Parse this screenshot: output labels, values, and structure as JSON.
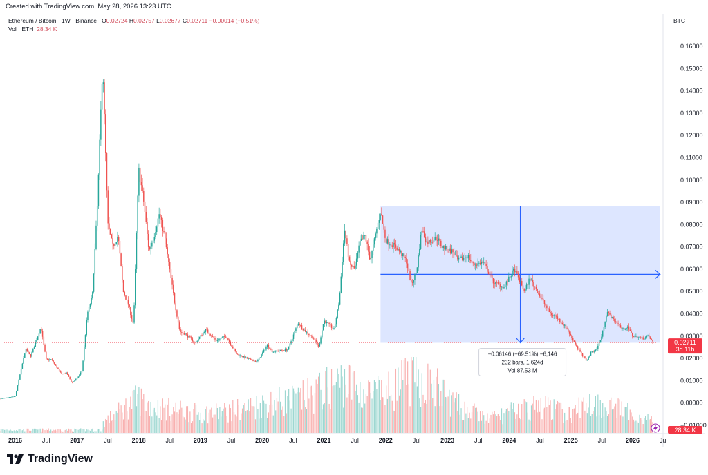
{
  "header": {
    "created": "Created with TradingView.com, May 28, 2026 13:23 UTC"
  },
  "legend": {
    "symbol": "Ethereum / Bitcoin · 1W · Binance",
    "o_label": "O",
    "o": "0.02724",
    "h_label": "H",
    "h": "0.02757",
    "l_label": "L",
    "l": "0.02677",
    "c_label": "C",
    "c": "0.02711",
    "change": "−0.00014 (−0.51%)",
    "vol_label": "Vol · ETH",
    "vol_value": "28.34 K"
  },
  "axis": {
    "currency": "BTC",
    "price_ticks": [
      "0.16000",
      "0.15000",
      "0.14000",
      "0.13000",
      "0.12000",
      "0.11000",
      "0.10000",
      "0.09000",
      "0.08000",
      "0.07000",
      "0.06000",
      "0.05000",
      "0.04000",
      "0.03000",
      "0.02000",
      "0.01000",
      "0.00000",
      "−0.01000"
    ],
    "time_ticks": [
      "2016",
      "Jul",
      "2017",
      "Jul",
      "2018",
      "Jul",
      "2019",
      "Jul",
      "2020",
      "Jul",
      "2021",
      "Jul",
      "2022",
      "Jul",
      "2023",
      "Jul",
      "2024",
      "Jul",
      "2025",
      "Jul",
      "2026",
      "Jul"
    ]
  },
  "price_badge": {
    "price": "0.02711",
    "countdown": "3d 11h"
  },
  "volume_badge": "28.34 K",
  "measure": {
    "line1": "−0.06146 (−69.51%) −6,146",
    "line2": "232 bars, 1,624d",
    "line3": "Vol 87.53 M"
  },
  "brand": {
    "name": "TradingView"
  },
  "colors": {
    "up": "#26a69a",
    "down": "#ef5350",
    "measure": "#2962ff",
    "badge": "#f23645"
  },
  "chart_data": {
    "type": "candlestick",
    "title": "Ethereum / Bitcoin · 1W · Binance",
    "unit": "BTC",
    "ylim": [
      -0.01,
      0.16
    ],
    "x_range": [
      "2016-01",
      "2026-07"
    ],
    "close_series": [
      [
        "2015-10",
        0.0019
      ],
      [
        "2016-01",
        0.003
      ],
      [
        "2016-03",
        0.024
      ],
      [
        "2016-04",
        0.021
      ],
      [
        "2016-06",
        0.034
      ],
      [
        "2016-07",
        0.0195
      ],
      [
        "2016-08",
        0.0195
      ],
      [
        "2016-10",
        0.013
      ],
      [
        "2016-11",
        0.0135
      ],
      [
        "2016-12",
        0.009
      ],
      [
        "2017-01",
        0.011
      ],
      [
        "2017-02",
        0.0145
      ],
      [
        "2017-03",
        0.04
      ],
      [
        "2017-04",
        0.048
      ],
      [
        "2017-05",
        0.09
      ],
      [
        "2017-06",
        0.153
      ],
      [
        "2017-07",
        0.08
      ],
      [
        "2017-08",
        0.07
      ],
      [
        "2017-09",
        0.075
      ],
      [
        "2017-10",
        0.05
      ],
      [
        "2017-11",
        0.044
      ],
      [
        "2017-12",
        0.035
      ],
      [
        "2018-01",
        0.105
      ],
      [
        "2018-02",
        0.09
      ],
      [
        "2018-03",
        0.068
      ],
      [
        "2018-04",
        0.075
      ],
      [
        "2018-05",
        0.085
      ],
      [
        "2018-06",
        0.075
      ],
      [
        "2018-07",
        0.06
      ],
      [
        "2018-08",
        0.045
      ],
      [
        "2018-09",
        0.032
      ],
      [
        "2018-10",
        0.031
      ],
      [
        "2018-11",
        0.029
      ],
      [
        "2018-12",
        0.027
      ],
      [
        "2019-02",
        0.033
      ],
      [
        "2019-04",
        0.028
      ],
      [
        "2019-06",
        0.03
      ],
      [
        "2019-08",
        0.022
      ],
      [
        "2019-10",
        0.02
      ],
      [
        "2019-12",
        0.0185
      ],
      [
        "2020-02",
        0.026
      ],
      [
        "2020-03",
        0.023
      ],
      [
        "2020-06",
        0.024
      ],
      [
        "2020-08",
        0.036
      ],
      [
        "2020-09",
        0.033
      ],
      [
        "2020-11",
        0.029
      ],
      [
        "2020-12",
        0.025
      ],
      [
        "2021-01",
        0.037
      ],
      [
        "2021-03",
        0.033
      ],
      [
        "2021-04",
        0.046
      ],
      [
        "2021-05",
        0.078
      ],
      [
        "2021-06",
        0.062
      ],
      [
        "2021-07",
        0.06
      ],
      [
        "2021-08",
        0.072
      ],
      [
        "2021-09",
        0.075
      ],
      [
        "2021-10",
        0.064
      ],
      [
        "2021-12",
        0.086
      ],
      [
        "2022-01",
        0.073
      ],
      [
        "2022-03",
        0.07
      ],
      [
        "2022-05",
        0.064
      ],
      [
        "2022-06",
        0.053
      ],
      [
        "2022-07",
        0.059
      ],
      [
        "2022-08",
        0.078
      ],
      [
        "2022-09",
        0.072
      ],
      [
        "2022-11",
        0.074
      ],
      [
        "2022-12",
        0.07
      ],
      [
        "2023-02",
        0.068
      ],
      [
        "2023-03",
        0.064
      ],
      [
        "2023-05",
        0.066
      ],
      [
        "2023-06",
        0.062
      ],
      [
        "2023-08",
        0.063
      ],
      [
        "2023-10",
        0.054
      ],
      [
        "2023-12",
        0.052
      ],
      [
        "2024-02",
        0.06
      ],
      [
        "2024-04",
        0.05
      ],
      [
        "2024-05",
        0.056
      ],
      [
        "2024-06",
        0.052
      ],
      [
        "2024-08",
        0.044
      ],
      [
        "2024-09",
        0.04
      ],
      [
        "2024-10",
        0.039
      ],
      [
        "2024-12",
        0.034
      ],
      [
        "2025-01",
        0.03
      ],
      [
        "2025-03",
        0.022
      ],
      [
        "2025-04",
        0.019
      ],
      [
        "2025-05",
        0.023
      ],
      [
        "2025-06",
        0.024
      ],
      [
        "2025-07",
        0.03
      ],
      [
        "2025-08",
        0.041
      ],
      [
        "2025-09",
        0.038
      ],
      [
        "2025-10",
        0.036
      ],
      [
        "2025-11",
        0.033
      ],
      [
        "2025-12",
        0.034
      ],
      [
        "2026-01",
        0.03
      ],
      [
        "2026-03",
        0.029
      ],
      [
        "2026-04",
        0.03
      ],
      [
        "2026-05",
        0.0271
      ]
    ],
    "price_high": [
      "2017-06",
      0.156
    ],
    "volume_levels": [
      [
        "2017-06",
        0.18
      ],
      [
        "2018-01",
        0.62
      ],
      [
        "2018-03",
        0.5
      ],
      [
        "2018-05",
        0.45
      ],
      [
        "2019-01",
        0.35
      ],
      [
        "2019-06",
        0.38
      ],
      [
        "2020-03",
        0.55
      ],
      [
        "2020-08",
        0.6
      ],
      [
        "2021-01",
        0.78
      ],
      [
        "2021-05",
        0.95
      ],
      [
        "2021-09",
        0.7
      ],
      [
        "2022-01",
        0.7
      ],
      [
        "2022-06",
        1.0
      ],
      [
        "2022-11",
        0.8
      ],
      [
        "2023-03",
        0.48
      ],
      [
        "2023-09",
        0.25
      ],
      [
        "2024-03",
        0.42
      ],
      [
        "2024-08",
        0.48
      ],
      [
        "2025-01",
        0.32
      ],
      [
        "2025-04",
        0.55
      ],
      [
        "2025-08",
        0.5
      ],
      [
        "2026-02",
        0.3
      ],
      [
        "2026-05",
        0.22
      ]
    ],
    "measure_range": {
      "from": "2021-12",
      "to": "2026-05",
      "start_price": 0.0884,
      "end_price": 0.027
    }
  }
}
